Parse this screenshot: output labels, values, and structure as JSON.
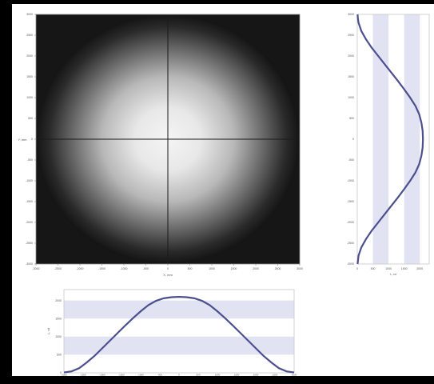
{
  "colors": {
    "background": "#000000",
    "panel": "#ffffff",
    "band": "#e2e3f2",
    "curve": "#4b4f8e",
    "frame": "#8a8a8a",
    "crosshair": "#1a1a1a"
  },
  "chart_data": [
    {
      "type": "heatmap",
      "title": "",
      "xlabel": "X, mm",
      "ylabel": "Y, mm",
      "xlim": [
        -3000,
        3000
      ],
      "ylim": [
        -3000,
        3000
      ],
      "xticks": [
        "-3000",
        "-2500",
        "-2000",
        "-1500",
        "-1000",
        "-500",
        "0",
        "500",
        "1000",
        "1500",
        "2000",
        "2500",
        "3000"
      ],
      "yticks": [
        "-3000",
        "-2500",
        "-2000",
        "-1500",
        "-1000",
        "-500",
        "0",
        "500",
        "1000",
        "1500",
        "2000",
        "2500",
        "3000"
      ],
      "distribution": "radial-gaussian",
      "center": [
        0,
        0
      ],
      "crosshair": [
        0,
        0
      ]
    },
    {
      "type": "line",
      "orientation": "vertical-profile",
      "title": "",
      "xlabel": "L, cd",
      "xticks": [
        "0",
        "500",
        "1000",
        "1500",
        "2000"
      ],
      "yticks": [
        "-3000",
        "-2500",
        "-2000",
        "-1500",
        "-1000",
        "-500",
        "0",
        "500",
        "1000",
        "1500",
        "2000",
        "2500",
        "3000"
      ],
      "xlim": [
        0,
        2300
      ],
      "ylim": [
        -3000,
        3000
      ],
      "series": [
        {
          "y": [
            3000,
            2900,
            2800,
            2600,
            2400,
            2200,
            2000,
            1800,
            1600,
            1400,
            1200,
            1000,
            800,
            600,
            400,
            200,
            0,
            -200,
            -400,
            -600,
            -800,
            -1000,
            -1200,
            -1400,
            -1600,
            -1800,
            -2000,
            -2200,
            -2400,
            -2600,
            -2800,
            -3000
          ],
          "values": [
            10,
            20,
            40,
            130,
            280,
            460,
            670,
            880,
            1090,
            1300,
            1500,
            1690,
            1860,
            1980,
            2050,
            2090,
            2100,
            2090,
            2050,
            1980,
            1860,
            1690,
            1500,
            1300,
            1090,
            880,
            670,
            460,
            280,
            130,
            40,
            10
          ]
        }
      ],
      "grid": "alternating-bands"
    },
    {
      "type": "line",
      "orientation": "horizontal-profile",
      "title": "",
      "ylabel": "L, cd",
      "yticks": [
        "0",
        "500",
        "1000",
        "1500",
        "2000"
      ],
      "xticks": [
        "-3000",
        "-2500",
        "-2000",
        "-1500",
        "-1000",
        "-500",
        "0",
        "500",
        "1000",
        "1500",
        "2000",
        "2500",
        "3000"
      ],
      "xlim": [
        -3000,
        3000
      ],
      "ylim": [
        0,
        2300
      ],
      "series": [
        {
          "x": [
            -3000,
            -2800,
            -2600,
            -2400,
            -2200,
            -2000,
            -1800,
            -1600,
            -1400,
            -1200,
            -1000,
            -800,
            -600,
            -400,
            -200,
            0,
            200,
            400,
            600,
            800,
            1000,
            1200,
            1400,
            1600,
            1800,
            2000,
            2200,
            2400,
            2600,
            2800,
            3000
          ],
          "values": [
            10,
            40,
            130,
            290,
            470,
            680,
            890,
            1100,
            1310,
            1510,
            1700,
            1870,
            1990,
            2060,
            2090,
            2100,
            2090,
            2060,
            1990,
            1870,
            1700,
            1510,
            1310,
            1100,
            890,
            680,
            470,
            290,
            130,
            40,
            10
          ]
        }
      ],
      "grid": "alternating-bands"
    }
  ]
}
